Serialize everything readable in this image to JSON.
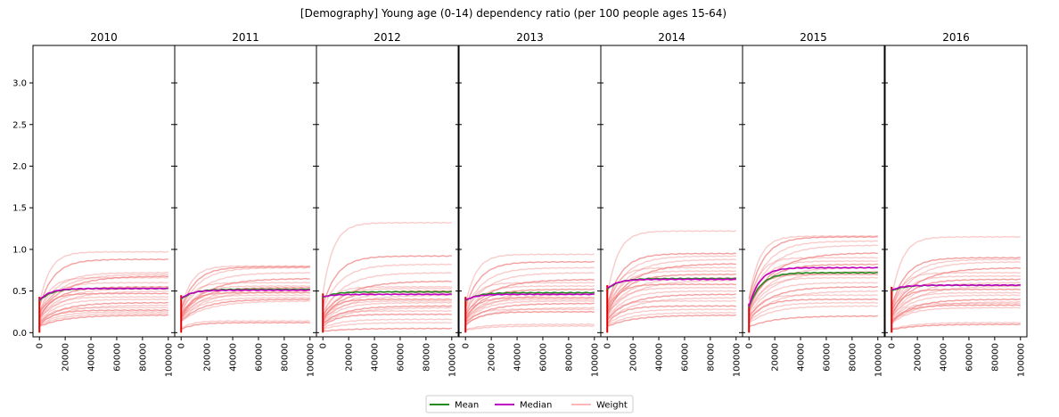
{
  "chart_data": {
    "type": "line",
    "title": "[Demography] Young age (0-14) dependency ratio (per 100 people ages 15-64)",
    "xlim": [
      -5000,
      105000
    ],
    "ylim": [
      -0.05,
      3.45
    ],
    "x_ticks": [
      0,
      20000,
      40000,
      60000,
      80000,
      100000
    ],
    "y_ticks": [
      0.0,
      0.5,
      1.0,
      1.5,
      2.0,
      2.5,
      3.0
    ],
    "y_tick_labels": [
      "0.0",
      "0.5",
      "1.0",
      "1.5",
      "2.0",
      "2.5",
      "3.0"
    ],
    "legend": {
      "placement": "bottom-center",
      "entries": [
        {
          "label": "Mean",
          "color": "#228B22"
        },
        {
          "label": "Median",
          "color": "#c000c0"
        },
        {
          "label": "Weight",
          "color": "#ffb6b6"
        }
      ]
    },
    "colors": {
      "mean": "#228B22",
      "median": "#c000c0",
      "weight": "#f08080",
      "initial_spike": "#e00000"
    },
    "panels": [
      {
        "title": "2010",
        "mean_end": 0.53,
        "median_end": 0.53,
        "mean_start": 0.38,
        "weights_end": [
          0.97,
          0.88,
          0.72,
          0.7,
          0.68,
          0.66,
          0.6,
          0.55,
          0.53,
          0.5,
          0.47,
          0.43,
          0.4,
          0.36,
          0.33,
          0.3,
          0.27,
          0.25,
          0.23,
          0.21
        ]
      },
      {
        "title": "2011",
        "mean_end": 0.52,
        "median_end": 0.51,
        "mean_start": 0.4,
        "weights_end": [
          0.8,
          0.79,
          0.78,
          0.72,
          0.65,
          0.6,
          0.56,
          0.54,
          0.52,
          0.5,
          0.48,
          0.45,
          0.42,
          0.4,
          0.38,
          0.14,
          0.12
        ]
      },
      {
        "title": "2012",
        "mean_end": 0.49,
        "median_end": 0.46,
        "mean_start": 0.42,
        "weights_end": [
          1.32,
          0.92,
          0.82,
          0.72,
          0.62,
          0.55,
          0.53,
          0.5,
          0.48,
          0.45,
          0.4,
          0.38,
          0.36,
          0.32,
          0.3,
          0.26,
          0.22,
          0.16,
          0.12,
          0.05
        ]
      },
      {
        "title": "2013",
        "mean_end": 0.48,
        "median_end": 0.46,
        "mean_start": 0.38,
        "weights_end": [
          0.94,
          0.85,
          0.78,
          0.72,
          0.64,
          0.6,
          0.56,
          0.52,
          0.48,
          0.46,
          0.42,
          0.4,
          0.38,
          0.35,
          0.3,
          0.28,
          0.25,
          0.1,
          0.08
        ]
      },
      {
        "title": "2014",
        "mean_end": 0.65,
        "median_end": 0.64,
        "mean_start": 0.52,
        "weights_end": [
          1.22,
          0.95,
          0.92,
          0.88,
          0.83,
          0.78,
          0.74,
          0.7,
          0.66,
          0.63,
          0.58,
          0.54,
          0.5,
          0.46,
          0.42,
          0.38,
          0.32,
          0.28,
          0.24,
          0.21
        ]
      },
      {
        "title": "2015",
        "mean_end": 0.72,
        "median_end": 0.78,
        "mean_start": 0.3,
        "weights_end": [
          1.16,
          1.15,
          1.1,
          1.05,
          0.96,
          0.9,
          0.86,
          0.82,
          0.78,
          0.74,
          0.7,
          0.66,
          0.6,
          0.55,
          0.5,
          0.45,
          0.4,
          0.36,
          0.32,
          0.2
        ]
      },
      {
        "title": "2016",
        "mean_end": 0.57,
        "median_end": 0.57,
        "mean_start": 0.5,
        "weights_end": [
          1.15,
          0.9,
          0.88,
          0.85,
          0.78,
          0.72,
          0.68,
          0.64,
          0.6,
          0.56,
          0.52,
          0.48,
          0.45,
          0.4,
          0.37,
          0.35,
          0.33,
          0.3,
          0.12,
          0.1
        ]
      }
    ]
  }
}
